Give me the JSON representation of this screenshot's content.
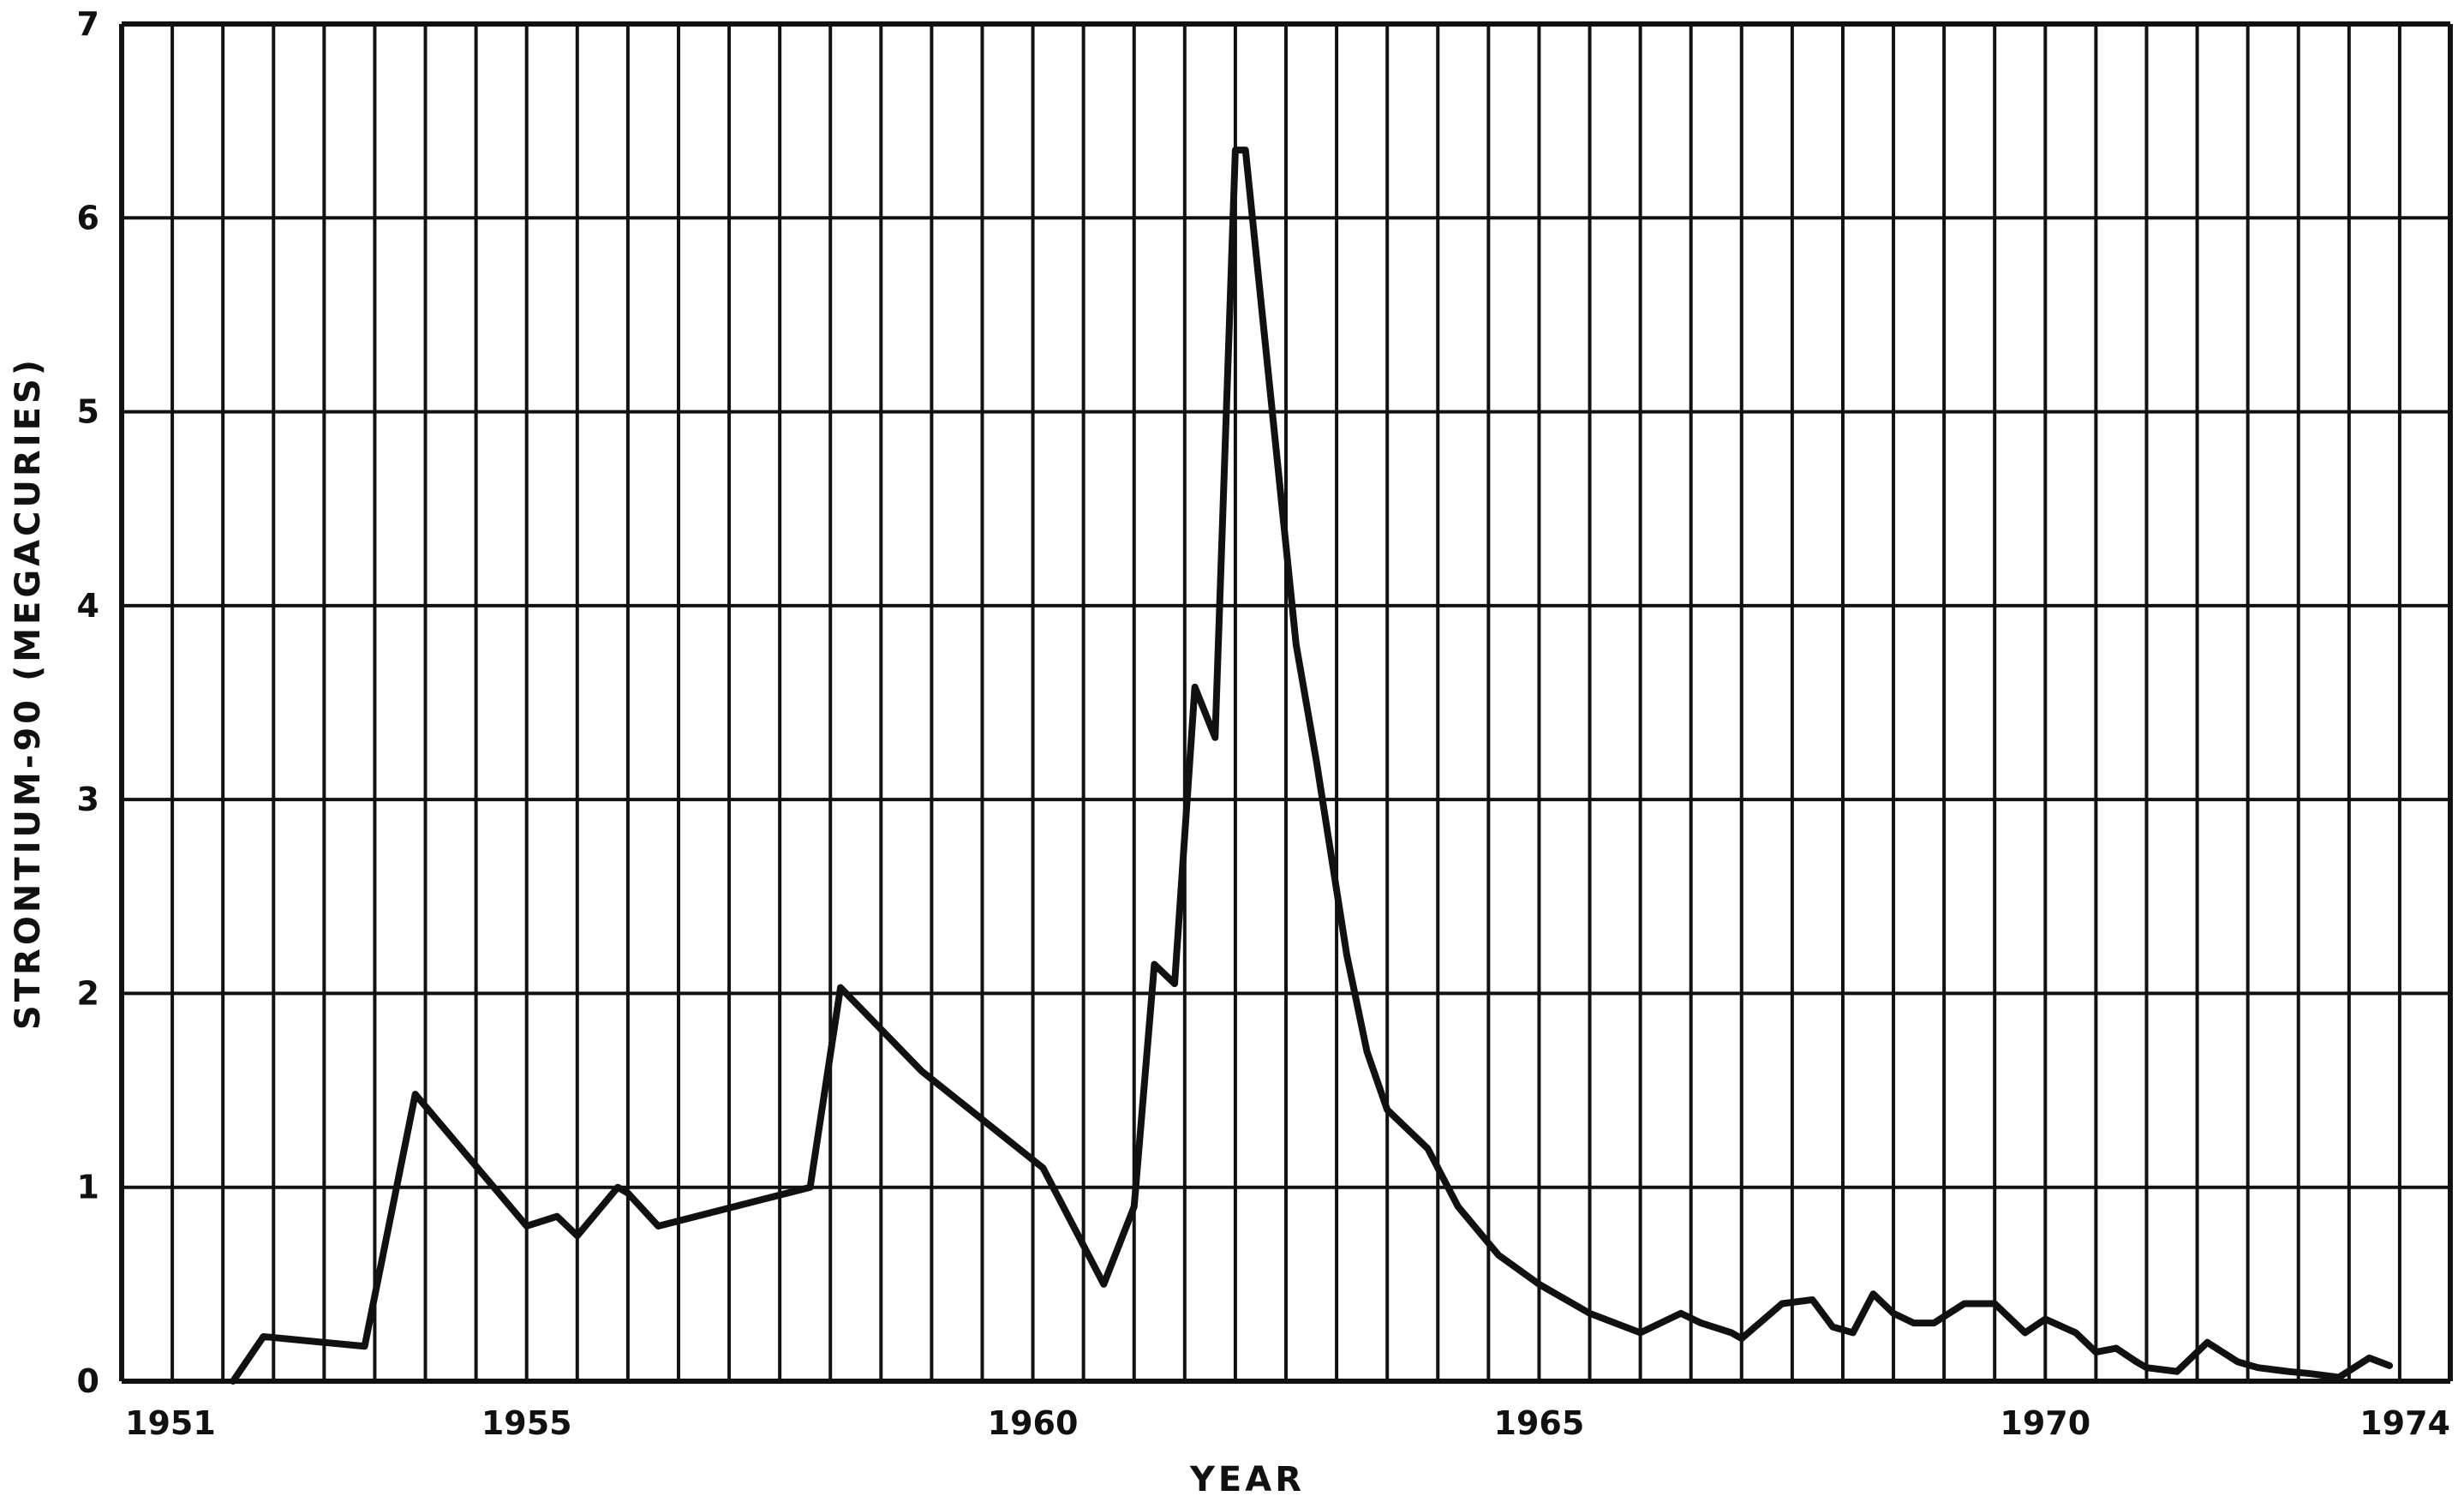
{
  "chart_data": {
    "type": "line",
    "title": "",
    "xlabel": "YEAR",
    "ylabel": "STRONTIUM-90 (MEGACURIES)",
    "xlim": [
      1951,
      1974
    ],
    "ylim": [
      0,
      7
    ],
    "x_ticks": [
      1951,
      1955,
      1960,
      1965,
      1970,
      1974
    ],
    "x_tick_labels": [
      "1951",
      "1955",
      "1960",
      "1965",
      "1970",
      "1974"
    ],
    "y_ticks": [
      0,
      1,
      2,
      3,
      4,
      5,
      6,
      7
    ],
    "y_tick_labels": [
      "0",
      "1",
      "2",
      "3",
      "4",
      "5",
      "6",
      "7"
    ],
    "x_gridline_step": 0.5,
    "grid": true,
    "line_color": "#111111",
    "series": [
      {
        "x": [
          1952.1,
          1952.4,
          1953.4,
          1953.9,
          1955.0,
          1955.3,
          1955.5,
          1955.9,
          1956.0,
          1956.3,
          1957.8,
          1958.1,
          1958.9,
          1960.1,
          1960.7,
          1961.0,
          1961.2,
          1961.4,
          1961.6,
          1961.8,
          1962.0,
          1962.1,
          1962.6,
          1962.8,
          1963.1,
          1963.3,
          1963.5,
          1963.9,
          1964.2,
          1964.6,
          1965.0,
          1965.5,
          1966.0,
          1966.4,
          1966.6,
          1966.9,
          1967.0,
          1967.4,
          1967.7,
          1967.9,
          1968.1,
          1968.3,
          1968.5,
          1968.7,
          1968.9,
          1969.2,
          1969.5,
          1969.8,
          1970.0,
          1970.3,
          1970.5,
          1970.7,
          1970.9,
          1971.0,
          1971.3,
          1971.6,
          1971.9,
          1972.1,
          1972.4,
          1972.6,
          1972.9,
          1973.2,
          1973.4
        ],
        "y": [
          0.0,
          0.23,
          0.18,
          1.48,
          0.8,
          0.85,
          0.75,
          1.0,
          0.97,
          0.8,
          1.0,
          2.03,
          1.6,
          1.1,
          0.5,
          0.9,
          2.15,
          2.05,
          3.58,
          3.32,
          6.35,
          6.35,
          3.8,
          3.2,
          2.2,
          1.7,
          1.4,
          1.2,
          0.9,
          0.65,
          0.5,
          0.35,
          0.25,
          0.35,
          0.3,
          0.25,
          0.22,
          0.4,
          0.42,
          0.28,
          0.25,
          0.45,
          0.35,
          0.3,
          0.3,
          0.4,
          0.4,
          0.25,
          0.32,
          0.25,
          0.15,
          0.17,
          0.1,
          0.07,
          0.05,
          0.2,
          0.1,
          0.07,
          0.05,
          0.04,
          0.02,
          0.12,
          0.08
        ]
      }
    ]
  }
}
